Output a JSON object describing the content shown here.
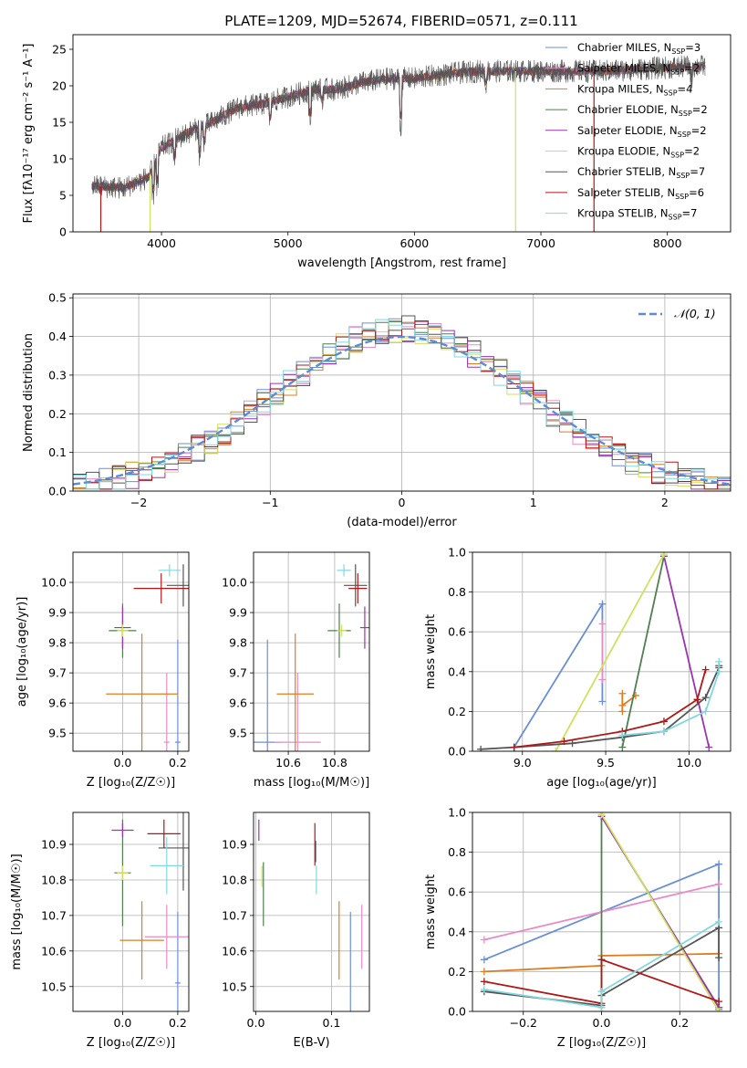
{
  "figure": {
    "title": "PLATE=1209, MJD=52674, FIBERID=0571, z=0.111"
  },
  "colors": {
    "Chabrier MILES": "#6a8fd6",
    "Salpeter MILES": "#e88cc6",
    "Kroupa MILES": "#e07b20",
    "Chabrier ELODIE": "#4f7f4f",
    "Salpeter ELODIE": "#9a34b0",
    "Kroupa ELODIE": "#d0e060",
    "Chabrier STELIB": "#555555",
    "Salpeter STELIB": "#b01818",
    "Kroupa STELIB": "#80d8e0",
    "normal": "#5e8ad6"
  },
  "chart_data": [
    {
      "id": "spectrum",
      "type": "line",
      "title": "PLATE=1209, MJD=52674, FIBERID=0571, z=0.111",
      "xlabel": "wavelength [Angstrom, rest frame]",
      "ylabel": "Flux [fλ10⁻¹⁷ erg cm⁻² s⁻¹ A⁻¹]",
      "xlim": [
        3300,
        8500
      ],
      "ylim": [
        0,
        27
      ],
      "xticks": [
        4000,
        5000,
        6000,
        7000,
        8000
      ],
      "yticks": [
        0,
        5,
        10,
        15,
        20,
        25
      ],
      "legend_position": "right",
      "legend": [
        {
          "base": "Chabrier MILES, N",
          "sub": "SSP",
          "tail": "=3",
          "series": "Chabrier MILES"
        },
        {
          "base": "Salpeter MILES, N",
          "sub": "SSP",
          "tail": "=2",
          "series": "Salpeter MILES"
        },
        {
          "base": "Kroupa MILES, N",
          "sub": "SSP",
          "tail": "=4",
          "series": "Kroupa MILES"
        },
        {
          "base": "Chabrier ELODIE, N",
          "sub": "SSP",
          "tail": "=2",
          "series": "Chabrier ELODIE"
        },
        {
          "base": "Salpeter ELODIE, N",
          "sub": "SSP",
          "tail": "=2",
          "series": "Salpeter ELODIE"
        },
        {
          "base": "Kroupa ELODIE, N",
          "sub": "SSP",
          "tail": "=2",
          "series": "Kroupa ELODIE"
        },
        {
          "base": "Chabrier STELIB, N",
          "sub": "SSP",
          "tail": "=7",
          "series": "Chabrier STELIB"
        },
        {
          "base": "Salpeter STELIB, N",
          "sub": "SSP",
          "tail": "=6",
          "series": "Salpeter STELIB"
        },
        {
          "base": "Kroupa STELIB, N",
          "sub": "SSP",
          "tail": "=7",
          "series": "Kroupa STELIB"
        }
      ],
      "continuum": [
        [
          3450,
          6.3
        ],
        [
          3700,
          6.0
        ],
        [
          3900,
          7.5
        ],
        [
          4000,
          11.5
        ],
        [
          4200,
          13.5
        ],
        [
          4400,
          15.0
        ],
        [
          4600,
          17.0
        ],
        [
          4800,
          17.5
        ],
        [
          5000,
          18.5
        ],
        [
          5200,
          19.5
        ],
        [
          5400,
          19.5
        ],
        [
          5600,
          20.5
        ],
        [
          5800,
          21.0
        ],
        [
          6000,
          21.0
        ],
        [
          6200,
          21.5
        ],
        [
          6500,
          22.0
        ],
        [
          7000,
          22.0
        ],
        [
          7500,
          22.0
        ],
        [
          8000,
          22.5
        ],
        [
          8300,
          22.7
        ]
      ],
      "drops": [
        {
          "x": 3520,
          "series": "Salpeter STELIB"
        },
        {
          "x": 3910,
          "series": "Kroupa ELODIE"
        },
        {
          "x": 6800,
          "series": "Kroupa ELODIE"
        },
        {
          "x": 7420,
          "series": "Salpeter STELIB"
        }
      ]
    },
    {
      "id": "residuals",
      "type": "histogram",
      "xlabel": "(data-model)/error",
      "ylabel": "Normed distribution",
      "xlim": [
        -2.5,
        2.5
      ],
      "ylim": [
        0,
        0.51
      ],
      "xticks": [
        -2,
        -1,
        0,
        1,
        2
      ],
      "yticks": [
        0.0,
        0.1,
        0.2,
        0.3,
        0.4,
        0.5
      ],
      "legend_position": "upper right",
      "normal_label": "𝒩(0, 1)",
      "bin_width": 0.1,
      "bin_start": -2.5
    },
    {
      "id": "age_vs_Z",
      "type": "errorbar",
      "xlabel": "Z [log₁₀(Z/Z☉)]",
      "ylabel": "age [log₁₀(age/yr)]",
      "xlim": [
        -0.18,
        0.24
      ],
      "ylim": [
        9.44,
        10.1
      ],
      "xticks": [
        0.0,
        0.2
      ],
      "yticks": [
        9.5,
        9.6,
        9.7,
        9.8,
        9.9,
        10.0
      ],
      "points": [
        {
          "series": "Chabrier MILES",
          "x": 0.2,
          "xerr": 0.01,
          "y": 9.47,
          "yerr": 0.34
        },
        {
          "series": "Salpeter MILES",
          "x": 0.16,
          "xerr": 0.01,
          "y": 9.47,
          "yerr": 0.23
        },
        {
          "series": "Kroupa MILES",
          "x": 0.07,
          "xerr": 0.13,
          "y": 9.63,
          "yerr": 0.2
        },
        {
          "series": "Chabrier ELODIE",
          "x": 0.0,
          "xerr": 0.05,
          "y": 9.84,
          "yerr": 0.09
        },
        {
          "series": "Salpeter ELODIE",
          "x": 0.0,
          "xerr": 0.03,
          "y": 9.85,
          "yerr": 0.07
        },
        {
          "series": "Kroupa ELODIE",
          "x": 0.0,
          "xerr": 0.02,
          "y": 9.84,
          "yerr": 0.02
        },
        {
          "series": "Chabrier STELIB",
          "x": 0.22,
          "xerr": 0.06,
          "y": 9.99,
          "yerr": 0.07
        },
        {
          "series": "Salpeter STELIB",
          "x": 0.14,
          "xerr": 0.1,
          "y": 9.98,
          "yerr": 0.05
        },
        {
          "series": "Kroupa STELIB",
          "x": 0.17,
          "xerr": 0.04,
          "y": 10.04,
          "yerr": 0.02
        }
      ]
    },
    {
      "id": "age_vs_mass",
      "type": "errorbar",
      "xlabel": "mass [log₁₀(M/M☉)]",
      "ylabel": "",
      "xlim": [
        10.45,
        10.95
      ],
      "ylim": [
        9.44,
        10.1
      ],
      "xticks": [
        10.6,
        10.8
      ],
      "yticks": [
        9.5,
        9.6,
        9.7,
        9.8,
        9.9,
        10.0
      ],
      "points": [
        {
          "series": "Chabrier MILES",
          "x": 10.51,
          "xerr": 0.06,
          "y": 9.47,
          "yerr": 0.34
        },
        {
          "series": "Salpeter MILES",
          "x": 10.64,
          "xerr": 0.1,
          "y": 9.47,
          "yerr": 0.23
        },
        {
          "series": "Kroupa MILES",
          "x": 10.63,
          "xerr": 0.08,
          "y": 9.63,
          "yerr": 0.2
        },
        {
          "series": "Chabrier ELODIE",
          "x": 10.82,
          "xerr": 0.05,
          "y": 9.84,
          "yerr": 0.09
        },
        {
          "series": "Salpeter ELODIE",
          "x": 10.93,
          "xerr": 0.02,
          "y": 9.85,
          "yerr": 0.07
        },
        {
          "series": "Kroupa ELODIE",
          "x": 10.83,
          "xerr": 0.02,
          "y": 9.84,
          "yerr": 0.02
        },
        {
          "series": "Chabrier STELIB",
          "x": 10.89,
          "xerr": 0.05,
          "y": 9.99,
          "yerr": 0.07
        },
        {
          "series": "Salpeter STELIB",
          "x": 10.9,
          "xerr": 0.04,
          "y": 9.98,
          "yerr": 0.05
        },
        {
          "series": "Kroupa STELIB",
          "x": 10.84,
          "xerr": 0.03,
          "y": 10.04,
          "yerr": 0.02
        }
      ]
    },
    {
      "id": "weight_vs_age",
      "type": "line",
      "xlabel": "age [log₁₀(age/yr)]",
      "ylabel": "mass weight",
      "xlim": [
        8.7,
        10.25
      ],
      "ylim": [
        0,
        1.0
      ],
      "xticks": [
        9.0,
        9.5,
        10.0
      ],
      "yticks": [
        0.0,
        0.2,
        0.4,
        0.6,
        0.8,
        1.0
      ],
      "series": [
        {
          "name": "Chabrier MILES",
          "x": [
            8.95,
            9.48,
            9.48
          ],
          "y": [
            0.02,
            0.74,
            0.25
          ]
        },
        {
          "name": "Salpeter MILES",
          "x": [
            9.48,
            9.48
          ],
          "y": [
            0.64,
            0.36
          ]
        },
        {
          "name": "Kroupa MILES",
          "x": [
            9.6,
            9.6,
            9.6,
            9.68
          ],
          "y": [
            0.29,
            0.2,
            0.23,
            0.28
          ]
        },
        {
          "name": "Chabrier ELODIE",
          "x": [
            9.6,
            9.85
          ],
          "y": [
            0.02,
            0.98
          ]
        },
        {
          "name": "Salpeter ELODIE",
          "x": [
            9.85,
            10.12
          ],
          "y": [
            0.98,
            0.02
          ]
        },
        {
          "name": "Kroupa ELODIE",
          "x": [
            9.2,
            9.85
          ],
          "y": [
            0.0,
            0.99
          ]
        },
        {
          "name": "Chabrier STELIB",
          "x": [
            8.75,
            8.95,
            9.3,
            9.6,
            9.85,
            10.1,
            10.18,
            10.18
          ],
          "y": [
            0.01,
            0.02,
            0.04,
            0.07,
            0.1,
            0.27,
            0.42,
            0.43
          ]
        },
        {
          "name": "Salpeter STELIB",
          "x": [
            8.95,
            9.25,
            9.6,
            9.85,
            10.05,
            10.1
          ],
          "y": [
            0.02,
            0.05,
            0.1,
            0.15,
            0.26,
            0.41
          ]
        },
        {
          "name": "Kroupa STELIB",
          "x": [
            9.6,
            9.85,
            10.1,
            10.18,
            10.18
          ],
          "y": [
            0.08,
            0.1,
            0.2,
            0.4,
            0.45
          ]
        }
      ]
    },
    {
      "id": "mass_vs_Z",
      "type": "errorbar",
      "xlabel": "Z [log₁₀(Z/Z☉)]",
      "ylabel": "mass [log₁₀(M/M☉)]",
      "xlim": [
        -0.18,
        0.24
      ],
      "ylim": [
        10.43,
        10.99
      ],
      "xticks": [
        0.0,
        0.2
      ],
      "yticks": [
        10.5,
        10.6,
        10.7,
        10.8,
        10.9
      ],
      "points": [
        {
          "series": "Chabrier MILES",
          "x": 0.2,
          "xerr": 0.01,
          "y": 10.51,
          "yerr": 0.2
        },
        {
          "series": "Salpeter MILES",
          "x": 0.16,
          "xerr": 0.08,
          "y": 10.64,
          "yerr": 0.09
        },
        {
          "series": "Kroupa MILES",
          "x": 0.07,
          "xerr": 0.08,
          "y": 10.63,
          "yerr": 0.11
        },
        {
          "series": "Chabrier ELODIE",
          "x": 0.0,
          "xerr": 0.03,
          "y": 10.82,
          "yerr": 0.15
        },
        {
          "series": "Salpeter ELODIE",
          "x": 0.0,
          "xerr": 0.04,
          "y": 10.94,
          "yerr": 0.02
        },
        {
          "series": "Kroupa ELODIE",
          "x": 0.0,
          "xerr": 0.02,
          "y": 10.82,
          "yerr": 0.02
        },
        {
          "series": "Chabrier STELIB",
          "x": 0.22,
          "xerr": 0.09,
          "y": 10.89,
          "yerr": 0.12
        },
        {
          "series": "Salpeter STELIB",
          "x": 0.15,
          "xerr": 0.06,
          "y": 10.93,
          "yerr": 0.04
        },
        {
          "series": "Kroupa STELIB",
          "x": 0.16,
          "xerr": 0.06,
          "y": 10.84,
          "yerr": 0.08
        }
      ]
    },
    {
      "id": "mass_vs_ebv",
      "type": "errorbar",
      "xlabel": "E(B-V)",
      "ylabel": "",
      "xlim": [
        -0.003,
        0.15
      ],
      "ylim": [
        10.43,
        10.99
      ],
      "xticks": [
        0.0,
        0.1
      ],
      "yticks": [
        10.5,
        10.6,
        10.7,
        10.8,
        10.9
      ],
      "points": [
        {
          "series": "Chabrier MILES",
          "x": 0.125,
          "xerr": 0,
          "y": 10.51,
          "yerr": 0.2
        },
        {
          "series": "Salpeter MILES",
          "x": 0.14,
          "xerr": 0,
          "y": 10.64,
          "yerr": 0.09
        },
        {
          "series": "Kroupa MILES",
          "x": 0.11,
          "xerr": 0,
          "y": 10.63,
          "yerr": 0.11
        },
        {
          "series": "Chabrier ELODIE",
          "x": 0.01,
          "xerr": 0,
          "y": 10.76,
          "yerr": 0.09
        },
        {
          "series": "Salpeter ELODIE",
          "x": 0.004,
          "xerr": 0,
          "y": 10.94,
          "yerr": 0.03
        },
        {
          "series": "Kroupa ELODIE",
          "x": 0.008,
          "xerr": 0,
          "y": 10.81,
          "yerr": 0.03
        },
        {
          "series": "Chabrier STELIB",
          "x": 0.079,
          "xerr": 0,
          "y": 10.88,
          "yerr": 0.03
        },
        {
          "series": "Salpeter STELIB",
          "x": 0.078,
          "xerr": 0,
          "y": 10.9,
          "yerr": 0.06
        },
        {
          "series": "Kroupa STELIB",
          "x": 0.08,
          "xerr": 0,
          "y": 10.8,
          "yerr": 0.04
        }
      ]
    },
    {
      "id": "weight_vs_Z",
      "type": "line",
      "xlabel": "Z [log₁₀(Z/Z☉)]",
      "ylabel": "mass weight",
      "xlim": [
        -0.33,
        0.33
      ],
      "ylim": [
        0,
        1.0
      ],
      "xticks": [
        -0.2,
        0.0,
        0.2
      ],
      "yticks": [
        0.0,
        0.2,
        0.4,
        0.6,
        0.8,
        1.0
      ],
      "series": [
        {
          "name": "Chabrier MILES",
          "x": [
            -0.3,
            0.3,
            0.3
          ],
          "y": [
            0.26,
            0.74,
            0.01
          ]
        },
        {
          "name": "Salpeter MILES",
          "x": [
            -0.3,
            0.3
          ],
          "y": [
            0.36,
            0.64
          ]
        },
        {
          "name": "Kroupa MILES",
          "x": [
            -0.3,
            0.0,
            0.0,
            0.3
          ],
          "y": [
            0.2,
            0.23,
            0.28,
            0.29
          ]
        },
        {
          "name": "Chabrier ELODIE",
          "x": [
            0.0,
            0.0,
            0.3
          ],
          "y": [
            0.02,
            0.98,
            0.02
          ]
        },
        {
          "name": "Salpeter ELODIE",
          "x": [
            0.0,
            0.3
          ],
          "y": [
            0.98,
            0.02
          ]
        },
        {
          "name": "Kroupa ELODIE",
          "x": [
            0.0,
            0.3
          ],
          "y": [
            0.99,
            0.0
          ]
        },
        {
          "name": "Chabrier STELIB",
          "x": [
            -0.3,
            0.0,
            0.0,
            0.3,
            0.3
          ],
          "y": [
            0.1,
            0.03,
            0.08,
            0.42,
            0.27
          ]
        },
        {
          "name": "Salpeter STELIB",
          "x": [
            -0.3,
            0.0,
            0.0,
            0.3
          ],
          "y": [
            0.15,
            0.04,
            0.26,
            0.05
          ]
        },
        {
          "name": "Kroupa STELIB",
          "x": [
            -0.3,
            0.0,
            0.0,
            0.3
          ],
          "y": [
            0.11,
            0.02,
            0.1,
            0.45
          ]
        }
      ]
    }
  ]
}
